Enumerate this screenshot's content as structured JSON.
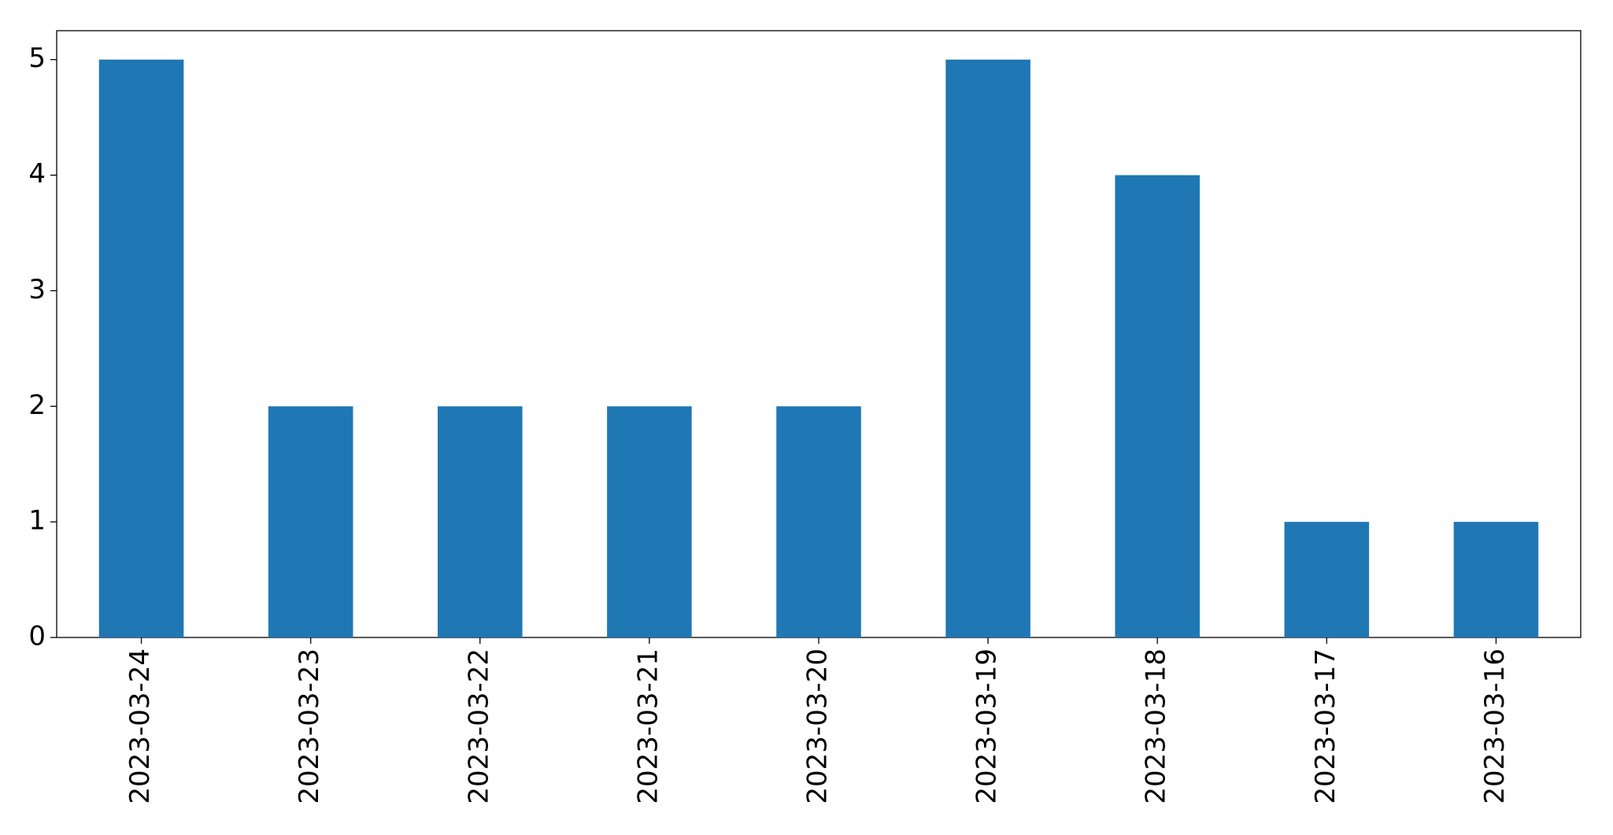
{
  "chart_data": {
    "type": "bar",
    "categories": [
      "2023-03-24",
      "2023-03-23",
      "2023-03-22",
      "2023-03-21",
      "2023-03-20",
      "2023-03-19",
      "2023-03-18",
      "2023-03-17",
      "2023-03-16"
    ],
    "values": [
      5,
      2,
      2,
      2,
      2,
      5,
      4,
      1,
      1
    ],
    "color": "#1f77b4",
    "ylim": [
      0,
      5.25
    ],
    "yticks": [
      0,
      1,
      2,
      3,
      4,
      5
    ],
    "grid": false
  }
}
